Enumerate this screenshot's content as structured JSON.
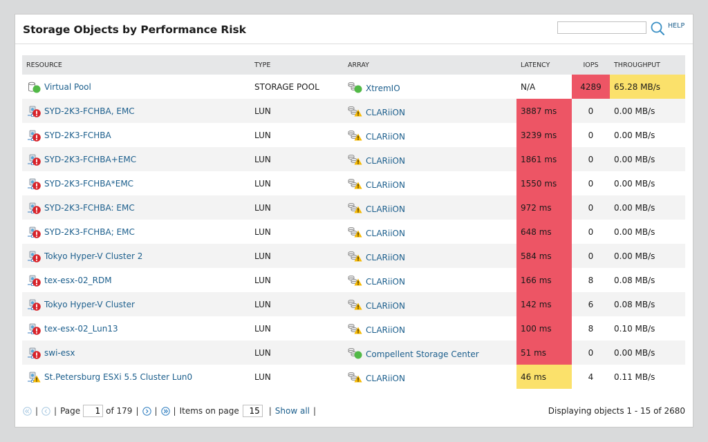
{
  "panel": {
    "title": "Storage Objects by Performance Risk",
    "search": {
      "value": "",
      "placeholder": ""
    },
    "help_label": "HELP"
  },
  "table": {
    "columns": {
      "resource": "RESOURCE",
      "type": "TYPE",
      "array": "ARRAY",
      "latency": "LATENCY",
      "iops": "IOPS",
      "throughput": "THROUGHPUT"
    },
    "rows": [
      {
        "resource": "Virtual Pool",
        "resource_icon": "storage-pool-icon",
        "resource_status": "up",
        "type": "STORAGE POOL",
        "array": "XtremIO",
        "array_status": "up",
        "latency": "N/A",
        "latency_level": "normal",
        "iops": "4289",
        "iops_level": "critical",
        "throughput": "65.28 MB/s",
        "throughput_level": "warning"
      },
      {
        "resource": "SYD-2K3-FCHBA, EMC",
        "resource_icon": "lun-icon",
        "resource_status": "critical",
        "type": "LUN",
        "array": "CLARiiON",
        "array_status": "warning",
        "latency": "3887 ms",
        "latency_level": "critical",
        "iops": "0",
        "iops_level": "normal",
        "throughput": "0.00 MB/s",
        "throughput_level": "normal"
      },
      {
        "resource": "SYD-2K3-FCHBA",
        "resource_icon": "lun-icon",
        "resource_status": "critical",
        "type": "LUN",
        "array": "CLARiiON",
        "array_status": "warning",
        "latency": "3239 ms",
        "latency_level": "critical",
        "iops": "0",
        "iops_level": "normal",
        "throughput": "0.00 MB/s",
        "throughput_level": "normal"
      },
      {
        "resource": "SYD-2K3-FCHBA+EMC",
        "resource_icon": "lun-icon",
        "resource_status": "critical",
        "type": "LUN",
        "array": "CLARiiON",
        "array_status": "warning",
        "latency": "1861 ms",
        "latency_level": "critical",
        "iops": "0",
        "iops_level": "normal",
        "throughput": "0.00 MB/s",
        "throughput_level": "normal"
      },
      {
        "resource": "SYD-2K3-FCHBA*EMC",
        "resource_icon": "lun-icon",
        "resource_status": "critical",
        "type": "LUN",
        "array": "CLARiiON",
        "array_status": "warning",
        "latency": "1550 ms",
        "latency_level": "critical",
        "iops": "0",
        "iops_level": "normal",
        "throughput": "0.00 MB/s",
        "throughput_level": "normal"
      },
      {
        "resource": "SYD-2K3-FCHBA: EMC",
        "resource_icon": "lun-icon",
        "resource_status": "critical",
        "type": "LUN",
        "array": "CLARiiON",
        "array_status": "warning",
        "latency": "972 ms",
        "latency_level": "critical",
        "iops": "0",
        "iops_level": "normal",
        "throughput": "0.00 MB/s",
        "throughput_level": "normal"
      },
      {
        "resource": "SYD-2K3-FCHBA; EMC",
        "resource_icon": "lun-icon",
        "resource_status": "critical",
        "type": "LUN",
        "array": "CLARiiON",
        "array_status": "warning",
        "latency": "648 ms",
        "latency_level": "critical",
        "iops": "0",
        "iops_level": "normal",
        "throughput": "0.00 MB/s",
        "throughput_level": "normal"
      },
      {
        "resource": "Tokyo Hyper-V Cluster 2",
        "resource_icon": "lun-icon",
        "resource_status": "critical",
        "type": "LUN",
        "array": "CLARiiON",
        "array_status": "warning",
        "latency": "584 ms",
        "latency_level": "critical",
        "iops": "0",
        "iops_level": "normal",
        "throughput": "0.00 MB/s",
        "throughput_level": "normal"
      },
      {
        "resource": "tex-esx-02_RDM",
        "resource_icon": "lun-icon",
        "resource_status": "critical",
        "type": "LUN",
        "array": "CLARiiON",
        "array_status": "warning",
        "latency": "166 ms",
        "latency_level": "critical",
        "iops": "8",
        "iops_level": "normal",
        "throughput": "0.08 MB/s",
        "throughput_level": "normal"
      },
      {
        "resource": "Tokyo Hyper-V Cluster",
        "resource_icon": "lun-icon",
        "resource_status": "critical",
        "type": "LUN",
        "array": "CLARiiON",
        "array_status": "warning",
        "latency": "142 ms",
        "latency_level": "critical",
        "iops": "6",
        "iops_level": "normal",
        "throughput": "0.08 MB/s",
        "throughput_level": "normal"
      },
      {
        "resource": "tex-esx-02_Lun13",
        "resource_icon": "lun-icon",
        "resource_status": "critical",
        "type": "LUN",
        "array": "CLARiiON",
        "array_status": "warning",
        "latency": "100 ms",
        "latency_level": "critical",
        "iops": "8",
        "iops_level": "normal",
        "throughput": "0.10 MB/s",
        "throughput_level": "normal"
      },
      {
        "resource": "swi-esx",
        "resource_icon": "lun-icon",
        "resource_status": "critical",
        "type": "LUN",
        "array": "Compellent Storage Center",
        "array_status": "up",
        "latency": "51 ms",
        "latency_level": "critical",
        "iops": "0",
        "iops_level": "normal",
        "throughput": "0.00 MB/s",
        "throughput_level": "normal"
      },
      {
        "resource": "St.Petersburg ESXi 5.5 Cluster Lun0",
        "resource_icon": "lun-icon",
        "resource_status": "warning",
        "type": "LUN",
        "array": "CLARiiON",
        "array_status": "warning",
        "latency": "46 ms",
        "latency_level": "warning",
        "iops": "4",
        "iops_level": "normal",
        "throughput": "0.11 MB/s",
        "throughput_level": "normal"
      }
    ]
  },
  "pager": {
    "page_label": "Page",
    "current_page": "1",
    "of_label": "of 179",
    "items_label": "Items on page",
    "items_per_page": "15",
    "show_all_label": "Show all",
    "displaying": "Displaying objects 1 - 15 of 2680"
  },
  "colors": {
    "critical": "#ed5565",
    "warning": "#fbe16b",
    "up": "#52b947",
    "link": "#1b5e8c"
  }
}
